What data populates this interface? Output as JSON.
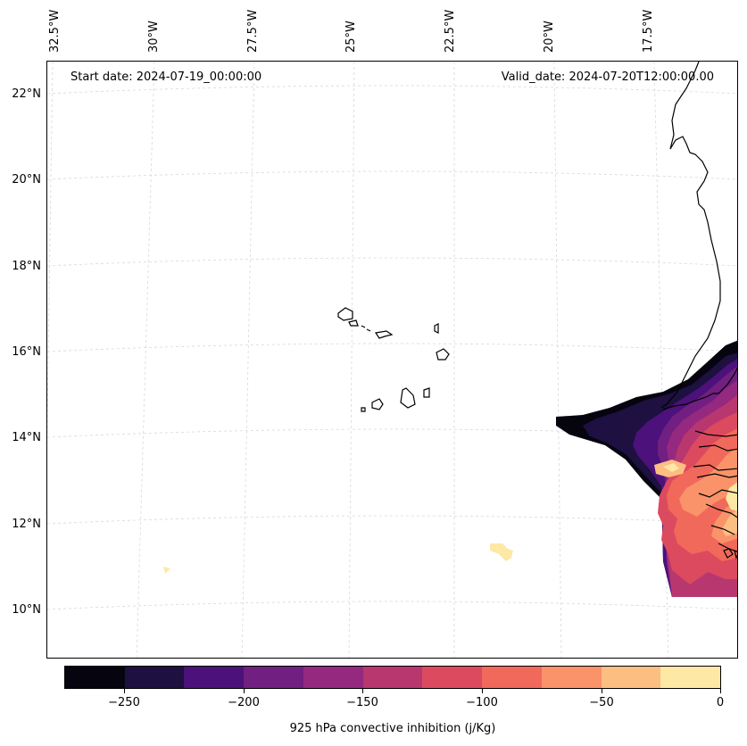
{
  "map": {
    "start_date": "Start date: 2024-07-19_00:00:00",
    "valid_date": "Valid_date: 2024-07-20T12:00:00.00",
    "longitude_labels": [
      "32.5°W",
      "30°W",
      "27.5°W",
      "25°W",
      "22.5°W",
      "20°W",
      "17.5°W"
    ],
    "latitude_labels": [
      "22°N",
      "20°N",
      "18°N",
      "16°N",
      "14°N",
      "12°N",
      "10°N"
    ],
    "field": "925 hPa convective inhibition",
    "units": "j/Kg"
  },
  "colorbar": {
    "title": "925 hPa convective inhibition (j/Kg)",
    "tick_labels": [
      "−250",
      "−200",
      "−150",
      "−100",
      "−50",
      "0"
    ],
    "range": [
      -275,
      0
    ],
    "step": 25,
    "colors": [
      "#05040f",
      "#1e1040",
      "#4c117a",
      "#711f81",
      "#95297f",
      "#b8376f",
      "#dc4a5f",
      "#f1695b",
      "#fa936a",
      "#fdbe82",
      "#fde8a6"
    ]
  }
}
